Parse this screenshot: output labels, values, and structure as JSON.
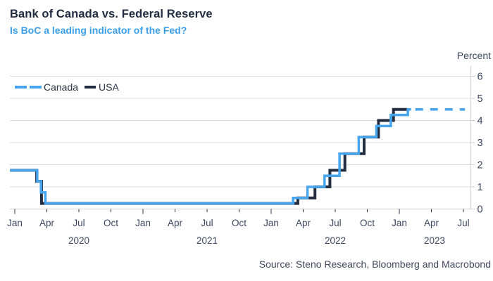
{
  "header": {
    "title": "Bank of Canada vs. Federal Reserve",
    "subtitle": "Is BoC a leading indicator of the Fed?"
  },
  "legend": {
    "canada": "Canada",
    "usa": "USA"
  },
  "y_axis": {
    "label": "Percent"
  },
  "footer": {
    "source": "Source: Steno Research, Bloomberg and Macrobond"
  },
  "colors": {
    "canada": "#47a5ee",
    "usa": "#242e41",
    "accent_blue": "#3b9ee9",
    "title_navy": "#222b3f",
    "grid": "#dcdcdc",
    "axis_line": "#d2d2d2",
    "x_tick": "#2b3447",
    "y_tick": "#c9cdd4",
    "tick_label": "#3c4760",
    "number_label": "#39445c"
  },
  "chart_data": {
    "type": "line",
    "subtype": "step",
    "title": "Bank of Canada vs. Federal Reserve",
    "subtitle": "Is BoC a leading indicator of the Fed?",
    "ylabel": "Percent",
    "ylim": [
      0,
      6.45
    ],
    "y_ticks": [
      0,
      1,
      2,
      3,
      4,
      5,
      6
    ],
    "x_unit": "months_since_Jan_2020",
    "xlim_months": [
      -0.45,
      42.7
    ],
    "grid": "horizontal",
    "legend_position": "top-left",
    "x_ticks": [
      {
        "t": 0,
        "label": "Jan",
        "major": true
      },
      {
        "t": 3,
        "label": "Apr",
        "major": false
      },
      {
        "t": 6,
        "label": "Jul",
        "major": false
      },
      {
        "t": 9,
        "label": "Oct",
        "major": false
      },
      {
        "t": 12,
        "label": "Jan",
        "major": true
      },
      {
        "t": 15,
        "label": "Apr",
        "major": false
      },
      {
        "t": 18,
        "label": "Jul",
        "major": false
      },
      {
        "t": 21,
        "label": "Oct",
        "major": false
      },
      {
        "t": 24,
        "label": "Jan",
        "major": true
      },
      {
        "t": 27,
        "label": "Apr",
        "major": false
      },
      {
        "t": 30,
        "label": "Jul",
        "major": false
      },
      {
        "t": 33,
        "label": "Oct",
        "major": false
      },
      {
        "t": 36,
        "label": "Jan",
        "major": true
      },
      {
        "t": 39,
        "label": "Apr",
        "major": false
      },
      {
        "t": 42,
        "label": "Jul",
        "major": false
      }
    ],
    "year_labels": [
      {
        "t": 6,
        "label": "2020"
      },
      {
        "t": 18,
        "label": "2021"
      },
      {
        "t": 30,
        "label": "2022"
      },
      {
        "t": 39.3,
        "label": "2023"
      }
    ],
    "series": [
      {
        "name": "USA",
        "style": "solid",
        "t_start": -0.45,
        "t_end": 36.75,
        "steps": [
          [
            0,
            1.75
          ],
          [
            2.05,
            1.25
          ],
          [
            2.5,
            0.25
          ],
          [
            26.5,
            0.5
          ],
          [
            28.1,
            1.0
          ],
          [
            29.5,
            1.75
          ],
          [
            30.9,
            2.5
          ],
          [
            32.7,
            3.25
          ],
          [
            34.05,
            4.0
          ],
          [
            35.45,
            4.5
          ]
        ]
      },
      {
        "name": "Canada",
        "style": "solid",
        "t_start": -0.45,
        "t_end": 37.1,
        "steps": [
          [
            0,
            1.75
          ],
          [
            2.1,
            1.25
          ],
          [
            2.45,
            0.75
          ],
          [
            2.87,
            0.25
          ],
          [
            26.05,
            0.5
          ],
          [
            27.4,
            1.0
          ],
          [
            29.0,
            1.5
          ],
          [
            30.4,
            2.5
          ],
          [
            32.2,
            3.25
          ],
          [
            33.85,
            3.75
          ],
          [
            35.2,
            4.25
          ],
          [
            36.8,
            4.5
          ]
        ]
      }
    ],
    "projection": {
      "name": "Canada (projection)",
      "style": "dashed",
      "t_start": 37.5,
      "t_end": 42.15,
      "value": 4.5
    }
  }
}
